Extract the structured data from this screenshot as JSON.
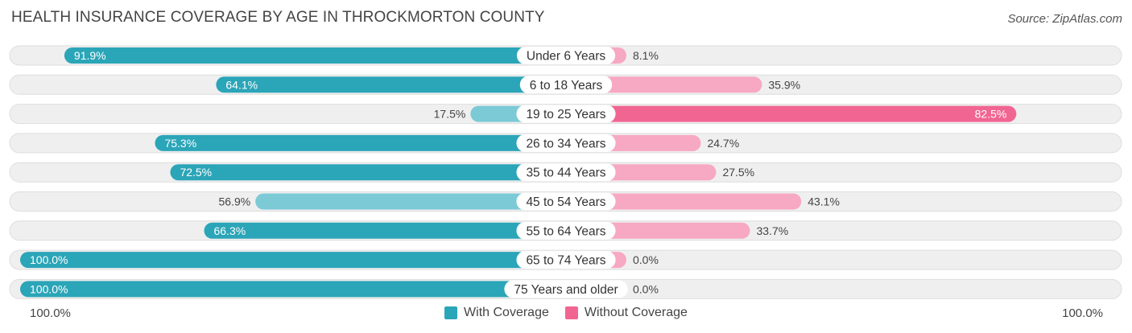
{
  "header": {
    "title": "HEALTH INSURANCE COVERAGE BY AGE IN THROCKMORTON COUNTY",
    "source": "Source: ZipAtlas.com"
  },
  "axis": {
    "left_label": "100.0%",
    "right_label": "100.0%"
  },
  "legend": {
    "with_label": "With Coverage",
    "without_label": "Without Coverage"
  },
  "colors": {
    "with_dark": "#2ba5b8",
    "with_light": "#7ccad6",
    "without_dark": "#f06592",
    "without_light": "#f7a8c3",
    "track": "#efefef"
  },
  "chart_data": {
    "type": "bar",
    "orientation": "horizontal-diverging",
    "title": "HEALTH INSURANCE COVERAGE BY AGE IN THROCKMORTON COUNTY",
    "xlim": [
      -100,
      100
    ],
    "categories": [
      "Under 6 Years",
      "6 to 18 Years",
      "19 to 25 Years",
      "26 to 34 Years",
      "35 to 44 Years",
      "45 to 54 Years",
      "55 to 64 Years",
      "65 to 74 Years",
      "75 Years and older"
    ],
    "series": [
      {
        "name": "With Coverage",
        "values": [
          91.9,
          64.1,
          17.5,
          75.3,
          72.5,
          56.9,
          66.3,
          100.0,
          100.0
        ],
        "labels": [
          "91.9%",
          "64.1%",
          "17.5%",
          "75.3%",
          "72.5%",
          "56.9%",
          "66.3%",
          "100.0%",
          "100.0%"
        ]
      },
      {
        "name": "Without Coverage",
        "values": [
          8.1,
          35.9,
          82.5,
          24.7,
          27.5,
          43.1,
          33.7,
          0.0,
          0.0
        ],
        "labels": [
          "8.1%",
          "35.9%",
          "82.5%",
          "24.7%",
          "27.5%",
          "43.1%",
          "33.7%",
          "0.0%",
          "0.0%"
        ]
      }
    ]
  }
}
